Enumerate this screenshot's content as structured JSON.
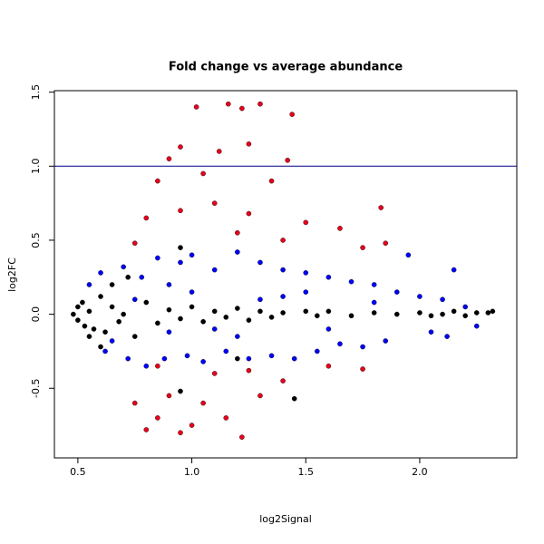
{
  "chart_data": {
    "type": "scatter",
    "title": "Fold change vs average abundance",
    "x_label": "log2Signal",
    "y_label": "log2FC",
    "xlim": [
      0.397,
      2.426
    ],
    "ylim": [
      -0.97,
      1.51
    ],
    "xticks": [
      0.5,
      {
        "value": 1,
        "label": "1.0"
      },
      1.5,
      {
        "value": 2,
        "label": "2.0"
      }
    ],
    "yticks": [
      -0.5,
      {
        "value": 0,
        "label": "0.0"
      },
      0.5,
      {
        "value": 1,
        "label": "1.0"
      },
      1.5
    ],
    "hline": {
      "value": 1,
      "color": "#00008b"
    },
    "series": [
      {
        "color": "#e8001c",
        "x": [
          1.02,
          1.16,
          1.22,
          1.3,
          1.44,
          0.95,
          1.12,
          1.25,
          1.42,
          0.9,
          1.05,
          1.35,
          0.85,
          0.8,
          0.95,
          1.1,
          1.25,
          1.5,
          1.65,
          1.75,
          1.83,
          1.85,
          0.75,
          1.2,
          1.4,
          0.8,
          0.85,
          0.95,
          1.0,
          1.22,
          1.15,
          1.05,
          0.9,
          1.3,
          1.4,
          1.1,
          0.85,
          1.25,
          1.6,
          1.75,
          0.75
        ],
        "values": [
          1.4,
          1.42,
          1.39,
          1.42,
          1.35,
          1.13,
          1.1,
          1.15,
          1.04,
          1.05,
          0.95,
          0.9,
          0.9,
          0.65,
          0.7,
          0.75,
          0.68,
          0.62,
          0.58,
          0.45,
          0.72,
          0.48,
          0.48,
          0.55,
          0.5,
          -0.78,
          -0.7,
          -0.8,
          -0.75,
          -0.83,
          -0.7,
          -0.6,
          -0.55,
          -0.55,
          -0.45,
          -0.4,
          -0.35,
          -0.38,
          -0.35,
          -0.37,
          -0.6
        ]
      },
      {
        "color": "#0000ff",
        "x": [
          0.55,
          0.6,
          0.62,
          0.7,
          0.72,
          0.78,
          0.8,
          0.85,
          0.88,
          0.9,
          0.95,
          0.98,
          1.0,
          1.05,
          1.1,
          1.15,
          1.2,
          1.25,
          1.3,
          1.35,
          1.4,
          1.45,
          1.5,
          1.55,
          1.6,
          1.65,
          1.7,
          1.75,
          1.8,
          1.85,
          1.9,
          1.95,
          2.0,
          2.05,
          2.1,
          2.15,
          2.2,
          2.25,
          2.12,
          1.0,
          1.2,
          1.4,
          0.9,
          1.6,
          1.3,
          0.75,
          1.1,
          1.5,
          1.8,
          0.65
        ],
        "values": [
          0.2,
          0.28,
          -0.25,
          0.32,
          -0.3,
          0.25,
          -0.35,
          0.38,
          -0.3,
          0.2,
          0.35,
          -0.28,
          0.4,
          -0.32,
          0.3,
          -0.25,
          0.42,
          -0.3,
          0.35,
          -0.28,
          0.3,
          -0.3,
          0.28,
          -0.25,
          0.25,
          -0.2,
          0.22,
          -0.22,
          0.2,
          -0.18,
          0.15,
          0.4,
          0.12,
          -0.12,
          0.1,
          0.3,
          0.05,
          -0.08,
          -0.15,
          0.15,
          -0.15,
          0.12,
          -0.12,
          -0.1,
          0.1,
          0.1,
          -0.1,
          0.15,
          0.08,
          -0.18
        ]
      },
      {
        "color": "#000000",
        "x": [
          0.48,
          0.5,
          0.5,
          0.52,
          0.53,
          0.55,
          0.57,
          0.6,
          0.62,
          0.65,
          0.68,
          0.7,
          0.72,
          0.75,
          0.8,
          0.85,
          0.9,
          0.95,
          1.0,
          1.05,
          1.1,
          1.15,
          1.2,
          1.25,
          1.3,
          1.35,
          1.4,
          1.45,
          1.5,
          1.55,
          1.6,
          1.7,
          1.8,
          1.9,
          2.0,
          2.05,
          2.1,
          2.15,
          2.2,
          2.25,
          2.3,
          2.32,
          0.95,
          0.6,
          0.95,
          1.2,
          0.55,
          0.65
        ],
        "values": [
          0.0,
          0.05,
          -0.04,
          0.08,
          -0.08,
          0.02,
          -0.1,
          0.12,
          -0.12,
          0.05,
          -0.05,
          0.0,
          0.25,
          -0.15,
          0.08,
          -0.06,
          0.03,
          -0.03,
          0.05,
          -0.05,
          0.02,
          -0.02,
          0.04,
          -0.04,
          0.02,
          -0.02,
          0.01,
          -0.57,
          0.02,
          -0.01,
          0.02,
          -0.01,
          0.01,
          0.0,
          0.01,
          -0.01,
          0.0,
          0.02,
          -0.01,
          0.01,
          0.01,
          0.02,
          0.45,
          -0.22,
          -0.52,
          -0.3,
          -0.15,
          0.2
        ]
      }
    ]
  }
}
